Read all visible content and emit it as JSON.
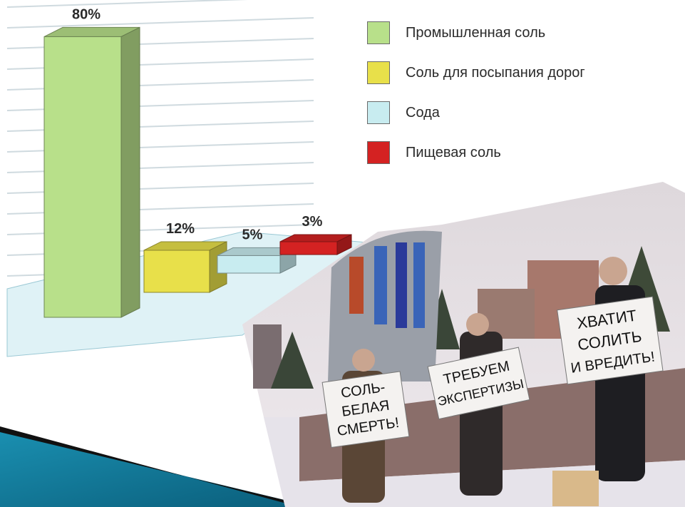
{
  "chart_data": {
    "type": "bar",
    "categories": [
      "Промышленная соль",
      "Соль для посыпания дорог",
      "Сода",
      "Пищевая соль"
    ],
    "values": [
      80,
      12,
      5,
      3
    ],
    "data_labels": [
      "80%",
      "12%",
      "5%",
      "3%"
    ],
    "colors": [
      "#b8e08a",
      "#e8e04a",
      "#c8ecf0",
      "#d42222"
    ],
    "ylim": [
      0,
      90
    ],
    "grid": true,
    "legend": "top-right",
    "style": "3d"
  },
  "legend": {
    "items": [
      {
        "label": "Промышленная соль",
        "color": "#b8e08a"
      },
      {
        "label": "Соль для посыпания дорог",
        "color": "#e8e04a"
      },
      {
        "label": "Сода",
        "color": "#c8ecf0"
      },
      {
        "label": "Пищевая соль",
        "color": "#d42222"
      }
    ]
  },
  "photo": {
    "signs": [
      {
        "lines": [
          "СОЛЬ-",
          "БЕЛАЯ",
          "СМЕРТЬ!"
        ]
      },
      {
        "lines": [
          "ТРЕБУЕМ",
          "ЭКСПЕРТИЗЫ"
        ]
      },
      {
        "lines": [
          "ХВАТИТ",
          "СОЛИТЬ",
          "И ВРЕДИТЬ!"
        ]
      }
    ]
  }
}
